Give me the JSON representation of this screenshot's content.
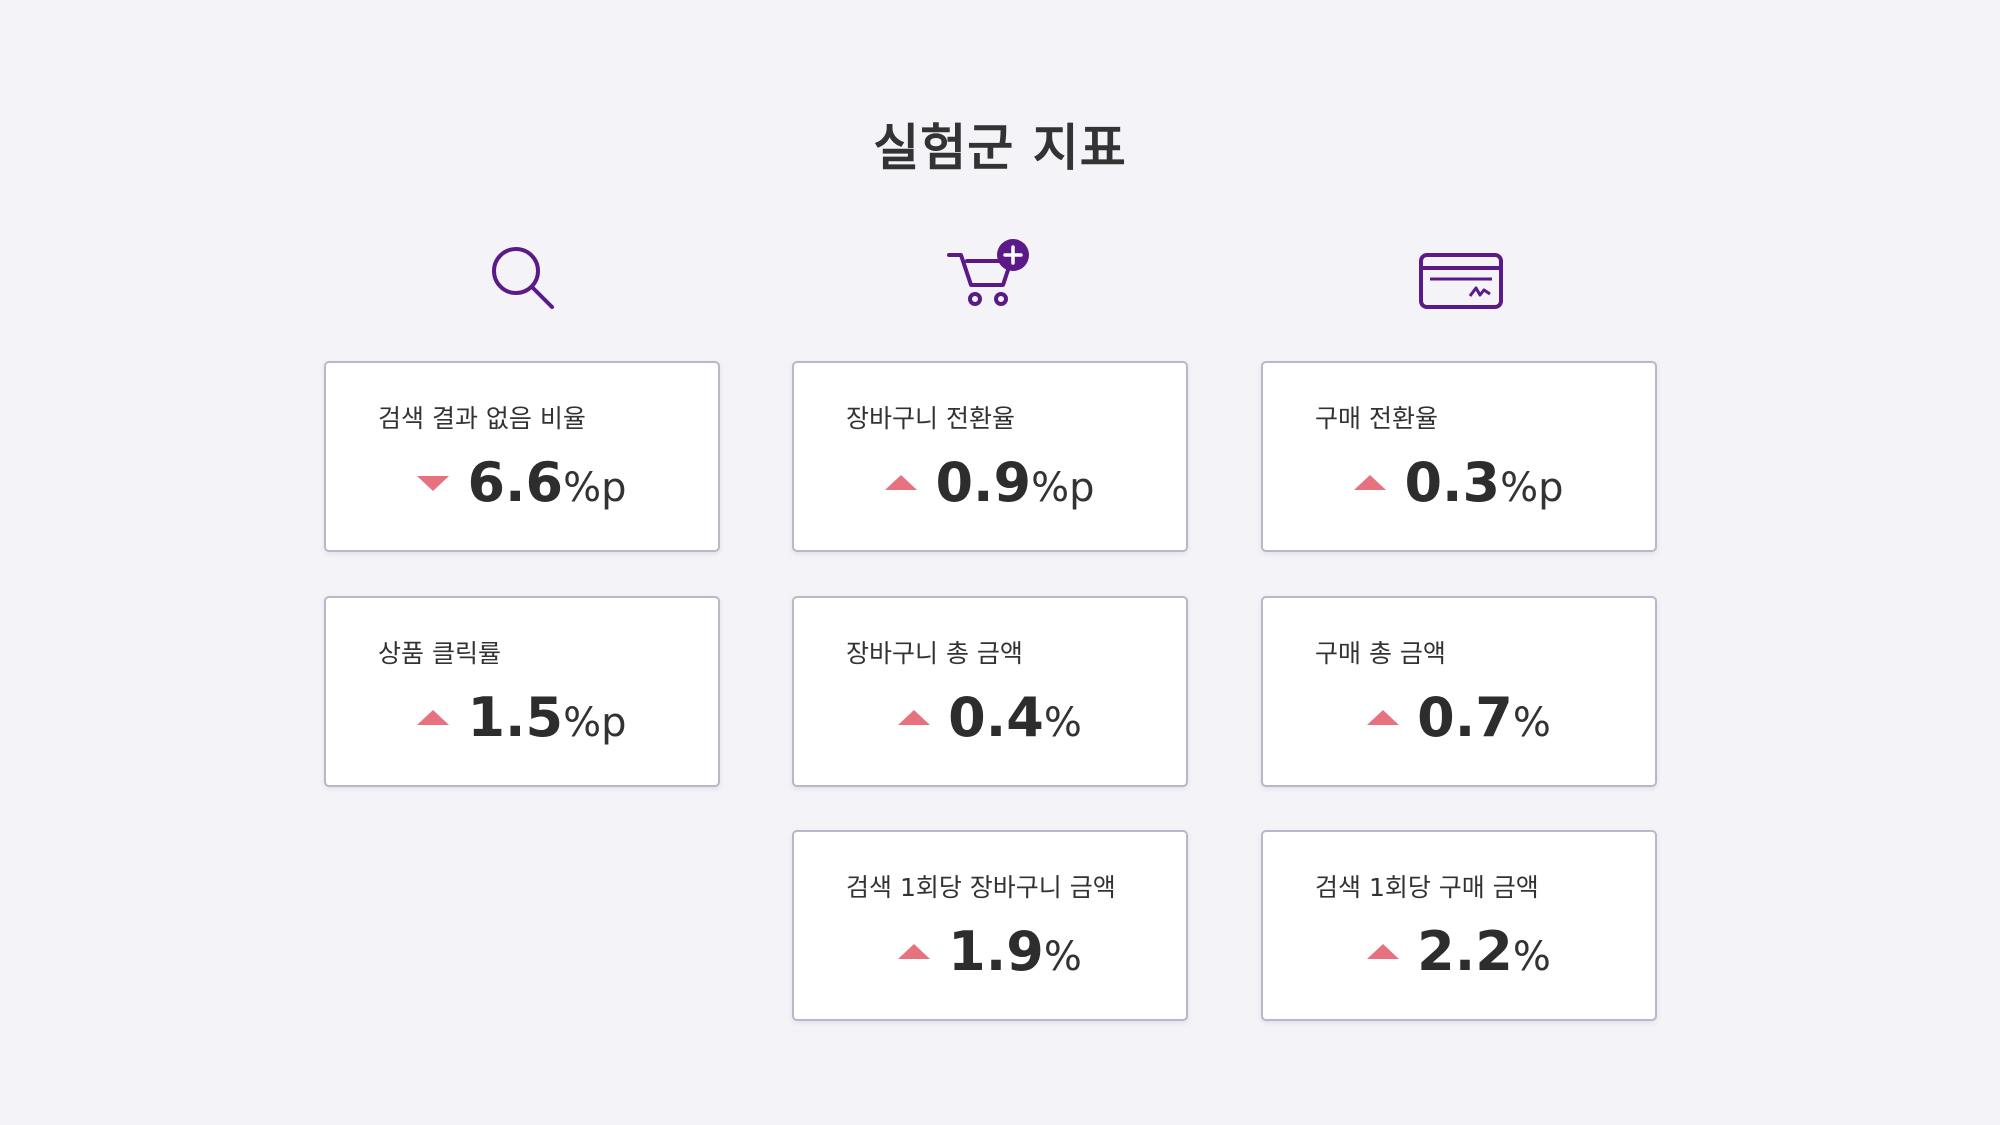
{
  "title": "실험군 지표",
  "columns": [
    {
      "cards": [
        {
          "label": "검색 결과 없음 비율",
          "direction": "down",
          "value": 6.6,
          "unit": "%p"
        },
        {
          "label": "상품 클릭률",
          "direction": "up",
          "value": 1.5,
          "unit": "%p"
        }
      ]
    },
    {
      "cards": [
        {
          "label": "장바구니 전환율",
          "direction": "up",
          "value": 0.9,
          "unit": "%p"
        },
        {
          "label": "장바구니 총 금액",
          "direction": "up",
          "value": 0.4,
          "unit": "%"
        },
        {
          "label": "검색 1회당 장바구니 금액",
          "direction": "up",
          "value": 1.9,
          "unit": "%"
        }
      ]
    },
    {
      "cards": [
        {
          "label": "구매 전환율",
          "direction": "up",
          "value": 0.3,
          "unit": "%p"
        },
        {
          "label": "구매 총 금액",
          "direction": "up",
          "value": 0.7,
          "unit": "%"
        },
        {
          "label": "검색 1회당 구매 금액",
          "direction": "up",
          "value": 2.2,
          "unit": "%"
        }
      ]
    }
  ]
}
